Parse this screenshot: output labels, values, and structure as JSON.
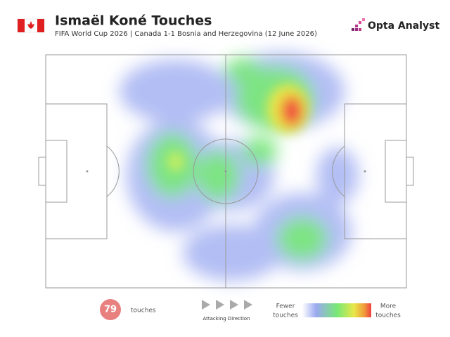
{
  "header": {
    "title": "Ismaël Koné Touches",
    "subtitle": "FIFA World Cup 2026 | Canada 1-1 Bosnia and Herzegovina (12 June 2026)",
    "brand": "Opta Analyst"
  },
  "stats": {
    "touches": 79,
    "label": "touches"
  },
  "direction": {
    "label": "Attacking Direction"
  },
  "legend": {
    "low": [
      "Fewer",
      "touches"
    ],
    "high": [
      "More",
      "touches"
    ]
  }
}
